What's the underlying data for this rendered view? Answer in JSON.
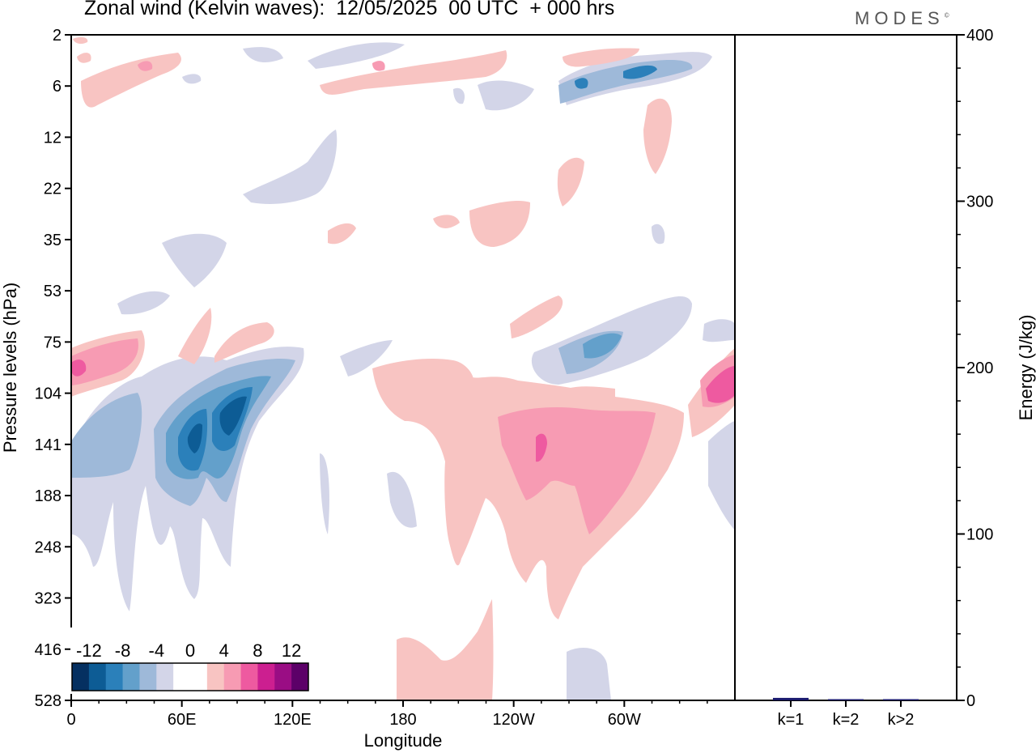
{
  "header": {
    "title": "Zonal wind (Kelvin waves):  12/05/2025  00 UTC  + 000 hrs",
    "brand": "MODES"
  },
  "chart_data": [
    {
      "type": "heatmap",
      "title": "Zonal wind (Kelvin waves):  12/05/2025  00 UTC  + 000 hrs",
      "xlabel": "Longitude",
      "ylabel": "Pressure levels (hPa)",
      "x_ticks": [
        "0",
        "60E",
        "120E",
        "180",
        "120W",
        "60W"
      ],
      "x_tick_values": [
        0,
        60,
        120,
        180,
        240,
        300
      ],
      "xlim": [
        0,
        360
      ],
      "y_ticks": [
        "2",
        "6",
        "12",
        "22",
        "35",
        "53",
        "75",
        "104",
        "141",
        "188",
        "248",
        "323",
        "416",
        "528"
      ],
      "y_scale": "log-like (pressure, increasing downward)",
      "colorbar": {
        "labels": [
          "-12",
          "-8",
          "-4",
          "0",
          "4",
          "8",
          "12"
        ],
        "colors": [
          "#053061",
          "#0d5c95",
          "#2b80ba",
          "#63a0cb",
          "#9eb9d9",
          "#d3d5e8",
          "#ffffff",
          "#ffffff",
          "#f8c4c2",
          "#f79bb3",
          "#ee5aa0",
          "#cc1f90",
          "#9a0d84",
          "#5c0068"
        ],
        "position": "bottom-left"
      },
      "features": [
        {
          "name": "negative anomaly maximum",
          "lon_range": [
            50,
            100
          ],
          "levels": "104-188 hPa",
          "min_value": -12
        },
        {
          "name": "positive anomaly maximum",
          "lon_range": [
            200,
            310
          ],
          "levels": "104-248 hPa",
          "max_value": 8
        },
        {
          "name": "positive anomaly near 0E",
          "lon_range": [
            0,
            40
          ],
          "levels": "75-104 hPa",
          "max_value": 8
        }
      ]
    },
    {
      "type": "bar",
      "ylabel": "Energy (J/kg)",
      "categories": [
        "k=1",
        "k=2",
        "k>2"
      ],
      "values": [
        1.5,
        0.5,
        0.5
      ],
      "ylim": [
        0,
        400
      ],
      "y_ticks": [
        "0",
        "100",
        "200",
        "300",
        "400"
      ],
      "bar_color": "#1a1a6e"
    }
  ]
}
